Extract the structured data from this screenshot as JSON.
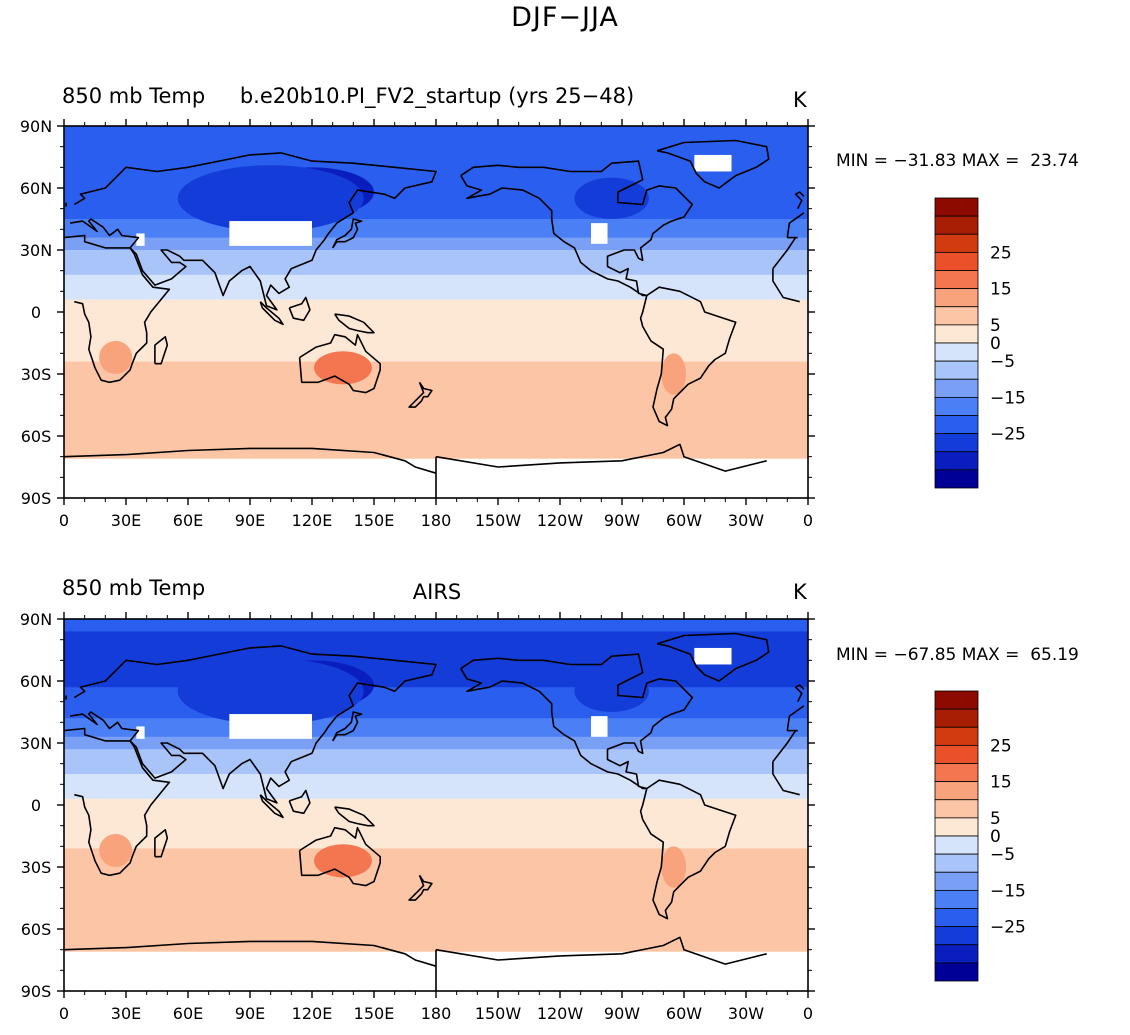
{
  "title": "DJF−JJA",
  "panels": [
    {
      "left_title": "850 mb Temp",
      "center_title": "b.e20b10.PI_FV2_startup (yrs 25−48)",
      "unit": "K",
      "min_label": "MIN = ",
      "min_value": "−31.83",
      "max_label": "MAX = ",
      "max_value": "23.74"
    },
    {
      "left_title": "850 mb Temp",
      "center_title": "AIRS",
      "unit": "K",
      "min_label": "MIN = ",
      "min_value": "−67.85",
      "max_label": "MAX = ",
      "max_value": "65.19"
    }
  ],
  "chart_data": [
    {
      "type": "heatmap",
      "title": "b.e20b10.PI_FV2_startup (yrs 25−48)",
      "variable": "850 mb Temp",
      "unit": "K",
      "min": -31.83,
      "max": 23.74,
      "x_ticks": [
        "0",
        "30E",
        "60E",
        "90E",
        "120E",
        "150E",
        "180",
        "150W",
        "120W",
        "90W",
        "60W",
        "30W",
        "0"
      ],
      "y_ticks": [
        "90N",
        "60N",
        "30N",
        "0",
        "30S",
        "60S",
        "90S"
      ],
      "colorbar_labels": [
        "25",
        "15",
        "5",
        "0",
        "−5",
        "−15",
        "−25"
      ],
      "colorbar_levels": [
        -35,
        -30,
        -25,
        -20,
        -15,
        -10,
        -5,
        0,
        5,
        10,
        15,
        20,
        25,
        30,
        35
      ],
      "colorbar_colors": [
        "#000096",
        "#0a1ec0",
        "#143cd9",
        "#2a5eee",
        "#4a7ff5",
        "#7aa0f6",
        "#a9c4f8",
        "#d6e4fb",
        "#fde8d6",
        "#fcc6a6",
        "#f9a37d",
        "#f47650",
        "#ea5029",
        "#d23a10",
        "#a81e05",
        "#8c0a00"
      ],
      "zonal_mean_sketch": {
        "lat": [
          90,
          75,
          60,
          45,
          30,
          15,
          0,
          -15,
          -30,
          -45,
          -60,
          -72
        ],
        "value": [
          -22,
          -24,
          -24,
          -20,
          -10,
          -4,
          2,
          4,
          6,
          6,
          6,
          8
        ]
      }
    },
    {
      "type": "heatmap",
      "title": "AIRS",
      "variable": "850 mb Temp",
      "unit": "K",
      "min": -67.85,
      "max": 65.19,
      "x_ticks": [
        "0",
        "30E",
        "60E",
        "90E",
        "120E",
        "150E",
        "180",
        "150W",
        "120W",
        "90W",
        "60W",
        "30W",
        "0"
      ],
      "y_ticks": [
        "90N",
        "60N",
        "30N",
        "0",
        "30S",
        "60S",
        "90S"
      ],
      "colorbar_labels": [
        "25",
        "15",
        "5",
        "0",
        "−5",
        "−15",
        "−25"
      ],
      "colorbar_levels": [
        -35,
        -30,
        -25,
        -20,
        -15,
        -10,
        -5,
        0,
        5,
        10,
        15,
        20,
        25,
        30,
        35
      ],
      "colorbar_colors": [
        "#000096",
        "#0a1ec0",
        "#143cd9",
        "#2a5eee",
        "#4a7ff5",
        "#7aa0f6",
        "#a9c4f8",
        "#d6e4fb",
        "#fde8d6",
        "#fcc6a6",
        "#f9a37d",
        "#f47650",
        "#ea5029",
        "#d23a10",
        "#a81e05",
        "#8c0a00"
      ],
      "zonal_mean_sketch": {
        "lat": [
          90,
          75,
          60,
          45,
          30,
          15,
          0,
          -15,
          -30,
          -45,
          -60,
          -72
        ],
        "value": [
          -24,
          -26,
          -26,
          -22,
          -12,
          -5,
          2,
          4,
          7,
          6,
          6,
          10
        ]
      }
    }
  ]
}
